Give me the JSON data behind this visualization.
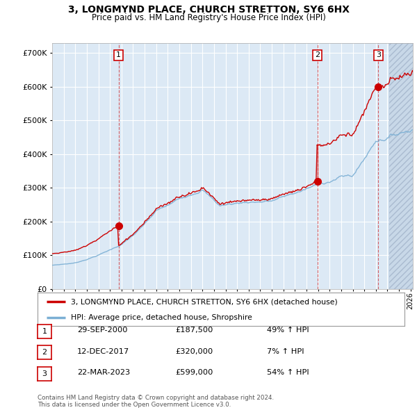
{
  "title": "3, LONGMYND PLACE, CHURCH STRETTON, SY6 6HX",
  "subtitle": "Price paid vs. HM Land Registry's House Price Index (HPI)",
  "ylim": [
    0,
    730000
  ],
  "yticks": [
    0,
    100000,
    200000,
    300000,
    400000,
    500000,
    600000,
    700000
  ],
  "xlim_start": 1995.3,
  "xlim_end": 2026.2,
  "background_color": "#ffffff",
  "plot_bg_color": "#dce9f5",
  "grid_color": "#ffffff",
  "purchases": [
    {
      "num": 1,
      "date": "29-SEP-2000",
      "price": 187500,
      "pct": "49%",
      "year": 2000.75
    },
    {
      "num": 2,
      "date": "12-DEC-2017",
      "price": 320000,
      "pct": "7%",
      "year": 2017.95
    },
    {
      "num": 3,
      "date": "22-MAR-2023",
      "price": 599000,
      "pct": "54%",
      "year": 2023.22
    }
  ],
  "legend_property_label": "3, LONGMYND PLACE, CHURCH STRETTON, SY6 6HX (detached house)",
  "legend_hpi_label": "HPI: Average price, detached house, Shropshire",
  "footer": "Contains HM Land Registry data © Crown copyright and database right 2024.\nThis data is licensed under the Open Government Licence v3.0.",
  "property_color": "#cc0000",
  "hpi_color": "#7bafd4",
  "purchase_marker_color": "#cc0000",
  "dashed_line_color": "#cc0000",
  "label_box_color": "#cc0000",
  "hatch_start": 2024.17
}
